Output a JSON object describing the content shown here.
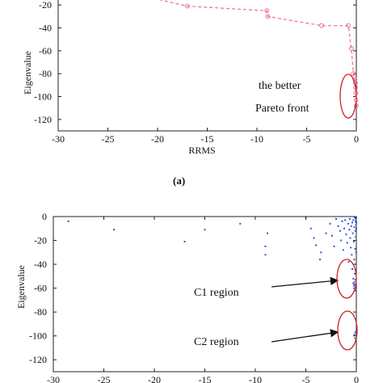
{
  "chart_data": [
    {
      "type": "line",
      "panel_label": "(a)",
      "xlabel": "RRMS",
      "ylabel": "Eigenvalue",
      "xlim": [
        -30,
        0
      ],
      "ylim": [
        -130,
        -10
      ],
      "xticks": [
        -30,
        -25,
        -20,
        -15,
        -10,
        -5,
        0
      ],
      "yticks": [
        -20,
        -40,
        -60,
        -80,
        -100,
        -120
      ],
      "grid": false,
      "series": [
        {
          "color": "#f06a8a",
          "style": "dashed",
          "marker": "circle",
          "points": [
            [
              -21.5,
              -12
            ],
            [
              -17,
              -21
            ],
            [
              -9,
              -25
            ],
            [
              -8.9,
              -30
            ],
            [
              -3.5,
              -38
            ],
            [
              -0.8,
              -38
            ],
            [
              -0.5,
              -58
            ],
            [
              -0.3,
              -80
            ],
            [
              -0.15,
              -85
            ],
            [
              -0.1,
              -88
            ],
            [
              -0.08,
              -92
            ],
            [
              -0.05,
              -97
            ],
            [
              -0.03,
              -103
            ],
            [
              0,
              -108
            ]
          ]
        }
      ],
      "annotations": [
        {
          "lines": [
            "the better",
            "Pareto front"
          ]
        }
      ]
    },
    {
      "type": "scatter",
      "xlabel": "",
      "ylabel": "Eigenvalue",
      "xlim": [
        -30,
        0
      ],
      "ylim": [
        -130,
        0
      ],
      "xticks": [
        -30,
        -25,
        -20,
        -15,
        -10,
        -5,
        0
      ],
      "yticks": [
        0,
        -20,
        -40,
        -60,
        -80,
        -100,
        -120
      ],
      "grid": false,
      "series": [
        {
          "color": "#3355cc",
          "points": [
            [
              -28.5,
              -4
            ],
            [
              -24,
              -11
            ],
            [
              -17,
              -21
            ],
            [
              -15,
              -11
            ],
            [
              -11.5,
              -6
            ],
            [
              -9,
              -25
            ],
            [
              -9,
              -32
            ],
            [
              -8.8,
              -14
            ],
            [
              -5,
              -1
            ],
            [
              -4.5,
              -10
            ],
            [
              -4.2,
              -18
            ],
            [
              -4,
              -24
            ],
            [
              -3.6,
              -36
            ],
            [
              -3.5,
              -30
            ],
            [
              -3,
              -14
            ],
            [
              -2.6,
              -6
            ],
            [
              -2.4,
              -16
            ],
            [
              -2.2,
              -25
            ],
            [
              -2,
              -2
            ],
            [
              -1.8,
              -8
            ],
            [
              -1.6,
              -12
            ],
            [
              -1.5,
              -20
            ],
            [
              -1.4,
              -4
            ],
            [
              -1.3,
              -28
            ],
            [
              -1.2,
              -10
            ],
            [
              -1.1,
              -3
            ],
            [
              -1,
              -15
            ],
            [
              -0.9,
              -22
            ],
            [
              -0.8,
              -6
            ],
            [
              -0.75,
              -38
            ],
            [
              -0.7,
              -11
            ],
            [
              -0.65,
              -2
            ],
            [
              -0.6,
              -18
            ],
            [
              -0.55,
              -26
            ],
            [
              -0.5,
              -8
            ],
            [
              -0.45,
              -32
            ],
            [
              -0.4,
              -5
            ],
            [
              -0.4,
              -44
            ],
            [
              -0.35,
              -14
            ],
            [
              -0.3,
              -52
            ],
            [
              -0.3,
              -3
            ],
            [
              -0.25,
              -21
            ],
            [
              -0.25,
              -58
            ],
            [
              -0.2,
              -9
            ],
            [
              -0.2,
              -36
            ],
            [
              -0.15,
              -48
            ],
            [
              -0.15,
              -1
            ],
            [
              -0.12,
              -27
            ],
            [
              -0.1,
              -12
            ],
            [
              -0.1,
              -62
            ],
            [
              -0.08,
              -4
            ],
            [
              -0.06,
              -40
            ],
            [
              -0.05,
              -17
            ],
            [
              -0.05,
              -2
            ],
            [
              -0.03,
              -7
            ],
            [
              -0.02,
              -30
            ],
            [
              0,
              -1
            ],
            [
              0,
              -5
            ],
            [
              0,
              -10
            ],
            [
              -0.2,
              -55
            ],
            [
              -0.3,
              -56
            ],
            [
              -0.1,
              -53
            ],
            [
              -0.15,
              -57
            ],
            [
              -0.1,
              -97
            ],
            [
              -0.12,
              -102
            ],
            [
              -0.18,
              -99
            ]
          ]
        }
      ],
      "annotations": [
        {
          "text": "C1 region"
        },
        {
          "text": "C2 region"
        }
      ]
    }
  ]
}
